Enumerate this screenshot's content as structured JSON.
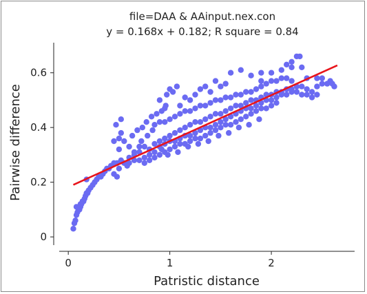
{
  "chart_data": {
    "type": "scatter",
    "title": "file=DAA & AAinput.nex.con",
    "subtitle": "y = 0.168x + 0.182; R square = 0.84",
    "xlabel": "Patristic distance",
    "ylabel": "Pairwise difference",
    "xlim": [
      -0.13,
      2.82
    ],
    "ylim": [
      -0.03,
      0.71
    ],
    "xticks": [
      0,
      1,
      2
    ],
    "yticks": [
      0,
      0.2,
      0.4,
      0.6
    ],
    "xtick_labels": [
      "0",
      "1",
      "2"
    ],
    "ytick_labels": [
      "0",
      "0.2",
      "0.4",
      "0.6"
    ],
    "grid": false,
    "point_color": "#6b6bf2",
    "regression": {
      "slope": 0.168,
      "intercept": 0.182,
      "x_range": [
        0.05,
        2.65
      ],
      "color": "#e8141b"
    },
    "series": [
      {
        "values": [
          [
            0.05,
            0.03
          ],
          [
            0.06,
            0.05
          ],
          [
            0.07,
            0.06
          ],
          [
            0.08,
            0.08
          ],
          [
            0.09,
            0.09
          ],
          [
            0.1,
            0.1
          ],
          [
            0.11,
            0.1
          ],
          [
            0.12,
            0.11
          ],
          [
            0.13,
            0.12
          ],
          [
            0.14,
            0.13
          ],
          [
            0.15,
            0.13
          ],
          [
            0.16,
            0.14
          ],
          [
            0.17,
            0.15
          ],
          [
            0.18,
            0.16
          ],
          [
            0.19,
            0.16
          ],
          [
            0.2,
            0.17
          ],
          [
            0.22,
            0.18
          ],
          [
            0.24,
            0.19
          ],
          [
            0.26,
            0.2
          ],
          [
            0.28,
            0.21
          ],
          [
            0.3,
            0.22
          ],
          [
            0.32,
            0.22
          ],
          [
            0.34,
            0.23
          ],
          [
            0.36,
            0.24
          ],
          [
            0.38,
            0.25
          ],
          [
            0.4,
            0.25
          ],
          [
            0.42,
            0.26
          ],
          [
            0.45,
            0.27
          ],
          [
            0.48,
            0.27
          ],
          [
            0.52,
            0.28
          ],
          [
            0.08,
            0.11
          ],
          [
            0.12,
            0.12
          ],
          [
            0.18,
            0.21
          ],
          [
            0.5,
            0.25
          ],
          [
            0.55,
            0.27
          ],
          [
            0.6,
            0.27
          ],
          [
            0.65,
            0.28
          ],
          [
            0.5,
            0.32
          ],
          [
            0.52,
            0.38
          ],
          [
            0.47,
            0.41
          ],
          [
            0.52,
            0.43
          ],
          [
            0.48,
            0.22
          ],
          [
            0.45,
            0.23
          ],
          [
            0.58,
            0.26
          ],
          [
            0.6,
            0.29
          ],
          [
            0.65,
            0.3
          ],
          [
            0.7,
            0.31
          ],
          [
            0.75,
            0.33
          ],
          [
            0.8,
            0.32
          ],
          [
            0.85,
            0.34
          ],
          [
            0.9,
            0.35
          ],
          [
            0.95,
            0.36
          ],
          [
            1.0,
            0.37
          ],
          [
            1.05,
            0.38
          ],
          [
            1.1,
            0.39
          ],
          [
            1.15,
            0.4
          ],
          [
            1.2,
            0.41
          ],
          [
            1.25,
            0.42
          ],
          [
            1.3,
            0.42
          ],
          [
            1.35,
            0.43
          ],
          [
            1.4,
            0.44
          ],
          [
            1.45,
            0.45
          ],
          [
            1.5,
            0.45
          ],
          [
            1.55,
            0.46
          ],
          [
            1.6,
            0.47
          ],
          [
            1.65,
            0.48
          ],
          [
            1.7,
            0.48
          ],
          [
            1.75,
            0.49
          ],
          [
            1.8,
            0.5
          ],
          [
            1.85,
            0.5
          ],
          [
            1.9,
            0.51
          ],
          [
            1.95,
            0.52
          ],
          [
            2.0,
            0.52
          ],
          [
            2.05,
            0.53
          ],
          [
            2.1,
            0.53
          ],
          [
            2.15,
            0.54
          ],
          [
            2.2,
            0.54
          ],
          [
            2.25,
            0.55
          ],
          [
            2.3,
            0.55
          ],
          [
            2.35,
            0.54
          ],
          [
            2.4,
            0.53
          ],
          [
            2.45,
            0.55
          ],
          [
            2.5,
            0.56
          ],
          [
            0.7,
            0.28
          ],
          [
            0.75,
            0.29
          ],
          [
            0.8,
            0.3
          ],
          [
            0.85,
            0.31
          ],
          [
            0.9,
            0.33
          ],
          [
            0.95,
            0.34
          ],
          [
            1.0,
            0.35
          ],
          [
            1.05,
            0.35
          ],
          [
            1.1,
            0.36
          ],
          [
            1.15,
            0.37
          ],
          [
            1.2,
            0.37
          ],
          [
            1.25,
            0.38
          ],
          [
            1.3,
            0.39
          ],
          [
            1.35,
            0.4
          ],
          [
            1.4,
            0.4
          ],
          [
            1.45,
            0.41
          ],
          [
            1.5,
            0.42
          ],
          [
            1.55,
            0.43
          ],
          [
            1.6,
            0.44
          ],
          [
            1.65,
            0.45
          ],
          [
            1.7,
            0.46
          ],
          [
            1.75,
            0.47
          ],
          [
            1.8,
            0.47
          ],
          [
            1.85,
            0.48
          ],
          [
            1.9,
            0.49
          ],
          [
            1.95,
            0.5
          ],
          [
            2.0,
            0.5
          ],
          [
            2.05,
            0.51
          ],
          [
            2.1,
            0.52
          ],
          [
            2.15,
            0.52
          ],
          [
            2.2,
            0.53
          ],
          [
            2.25,
            0.53
          ],
          [
            2.3,
            0.52
          ],
          [
            2.35,
            0.52
          ],
          [
            2.4,
            0.51
          ],
          [
            2.45,
            0.52
          ],
          [
            0.85,
            0.41
          ],
          [
            0.9,
            0.42
          ],
          [
            0.95,
            0.42
          ],
          [
            1.0,
            0.43
          ],
          [
            1.05,
            0.44
          ],
          [
            1.1,
            0.45
          ],
          [
            1.15,
            0.46
          ],
          [
            1.2,
            0.46
          ],
          [
            1.25,
            0.47
          ],
          [
            1.3,
            0.48
          ],
          [
            1.35,
            0.48
          ],
          [
            1.4,
            0.49
          ],
          [
            1.45,
            0.5
          ],
          [
            1.5,
            0.5
          ],
          [
            1.55,
            0.51
          ],
          [
            1.6,
            0.51
          ],
          [
            1.65,
            0.52
          ],
          [
            1.7,
            0.52
          ],
          [
            1.75,
            0.53
          ],
          [
            1.8,
            0.53
          ],
          [
            1.85,
            0.54
          ],
          [
            1.9,
            0.55
          ],
          [
            1.95,
            0.56
          ],
          [
            2.0,
            0.57
          ],
          [
            2.05,
            0.57
          ],
          [
            2.1,
            0.58
          ],
          [
            2.15,
            0.58
          ],
          [
            2.2,
            0.57
          ],
          [
            0.75,
            0.27
          ],
          [
            0.8,
            0.28
          ],
          [
            0.85,
            0.29
          ],
          [
            0.9,
            0.3
          ],
          [
            0.95,
            0.31
          ],
          [
            1.0,
            0.32
          ],
          [
            1.05,
            0.33
          ],
          [
            1.1,
            0.34
          ],
          [
            1.15,
            0.34
          ],
          [
            1.2,
            0.35
          ],
          [
            1.25,
            0.36
          ],
          [
            1.3,
            0.36
          ],
          [
            1.35,
            0.37
          ],
          [
            1.4,
            0.38
          ],
          [
            1.45,
            0.39
          ],
          [
            1.5,
            0.4
          ],
          [
            1.55,
            0.41
          ],
          [
            1.6,
            0.41
          ],
          [
            1.65,
            0.42
          ],
          [
            1.7,
            0.43
          ],
          [
            1.75,
            0.44
          ],
          [
            1.8,
            0.45
          ],
          [
            1.85,
            0.46
          ],
          [
            1.9,
            0.47
          ],
          [
            1.95,
            0.47
          ],
          [
            2.0,
            0.48
          ],
          [
            2.05,
            0.49
          ],
          [
            0.9,
            0.5
          ],
          [
            0.95,
            0.47
          ],
          [
            0.97,
            0.52
          ],
          [
            1.0,
            0.54
          ],
          [
            1.03,
            0.53
          ],
          [
            1.07,
            0.55
          ],
          [
            0.96,
            0.48
          ],
          [
            1.6,
            0.6
          ],
          [
            1.7,
            0.61
          ],
          [
            1.8,
            0.59
          ],
          [
            1.9,
            0.6
          ],
          [
            2.0,
            0.6
          ],
          [
            2.1,
            0.61
          ],
          [
            2.15,
            0.63
          ],
          [
            2.2,
            0.64
          ],
          [
            2.25,
            0.66
          ],
          [
            2.28,
            0.66
          ],
          [
            2.3,
            0.62
          ],
          [
            2.2,
            0.62
          ],
          [
            1.9,
            0.57
          ],
          [
            2.35,
            0.58
          ],
          [
            2.45,
            0.58
          ],
          [
            2.58,
            0.57
          ],
          [
            2.6,
            0.56
          ],
          [
            2.62,
            0.55
          ],
          [
            2.55,
            0.56
          ],
          [
            2.5,
            0.58
          ],
          [
            0.45,
            0.35
          ],
          [
            0.5,
            0.36
          ],
          [
            0.55,
            0.35
          ],
          [
            0.6,
            0.33
          ],
          [
            0.65,
            0.31
          ],
          [
            0.72,
            0.35
          ],
          [
            0.78,
            0.37
          ],
          [
            0.83,
            0.39
          ],
          [
            0.7,
            0.33
          ],
          [
            0.92,
            0.32
          ],
          [
            0.98,
            0.3
          ],
          [
            1.08,
            0.31
          ],
          [
            1.18,
            0.33
          ],
          [
            1.28,
            0.34
          ],
          [
            1.38,
            0.35
          ],
          [
            1.48,
            0.37
          ],
          [
            1.58,
            0.38
          ],
          [
            1.68,
            0.4
          ],
          [
            1.78,
            0.41
          ],
          [
            1.88,
            0.43
          ],
          [
            1.2,
            0.5
          ],
          [
            1.25,
            0.52
          ],
          [
            1.3,
            0.54
          ],
          [
            1.35,
            0.55
          ],
          [
            1.4,
            0.53
          ],
          [
            1.45,
            0.57
          ],
          [
            1.5,
            0.55
          ],
          [
            1.55,
            0.56
          ],
          [
            1.1,
            0.48
          ],
          [
            1.15,
            0.51
          ],
          [
            0.63,
            0.37
          ],
          [
            0.68,
            0.39
          ],
          [
            0.73,
            0.4
          ],
          [
            0.77,
            0.42
          ],
          [
            0.82,
            0.44
          ],
          [
            0.87,
            0.45
          ],
          [
            0.92,
            0.46
          ]
        ]
      }
    ]
  }
}
